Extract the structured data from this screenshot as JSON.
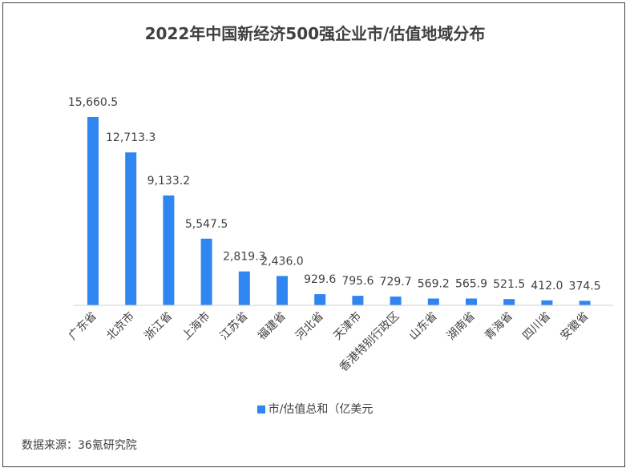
{
  "chart_data": {
    "type": "bar",
    "title": "2022年中国新经济500强企业市/估值地域分布",
    "categories": [
      "广东省",
      "北京市",
      "浙江省",
      "上海市",
      "江苏省",
      "福建省",
      "河北省",
      "天津市",
      "香港特别行政区",
      "山东省",
      "湖南省",
      "青海省",
      "四川省",
      "安徽省"
    ],
    "series": [
      {
        "name": "市/估值总和（亿美元",
        "values": [
          15660.5,
          12713.3,
          9133.2,
          5547.5,
          2819.3,
          2436.0,
          929.6,
          795.6,
          729.7,
          569.2,
          565.9,
          521.5,
          412.0,
          374.5
        ]
      }
    ],
    "data_labels": [
      "15,660.5",
      "12,713.3",
      "9,133.2",
      "5,547.5",
      "2,819.3",
      "2,436.0",
      "929.6",
      "795.6",
      "729.7",
      "569.2",
      "565.9",
      "521.5",
      "412.0",
      "374.5"
    ],
    "ylim": [
      0,
      16000
    ],
    "grid": false,
    "legend_position": "bottom",
    "bar_color": "#2f86f0"
  },
  "source": "数据来源：36氪研究院"
}
